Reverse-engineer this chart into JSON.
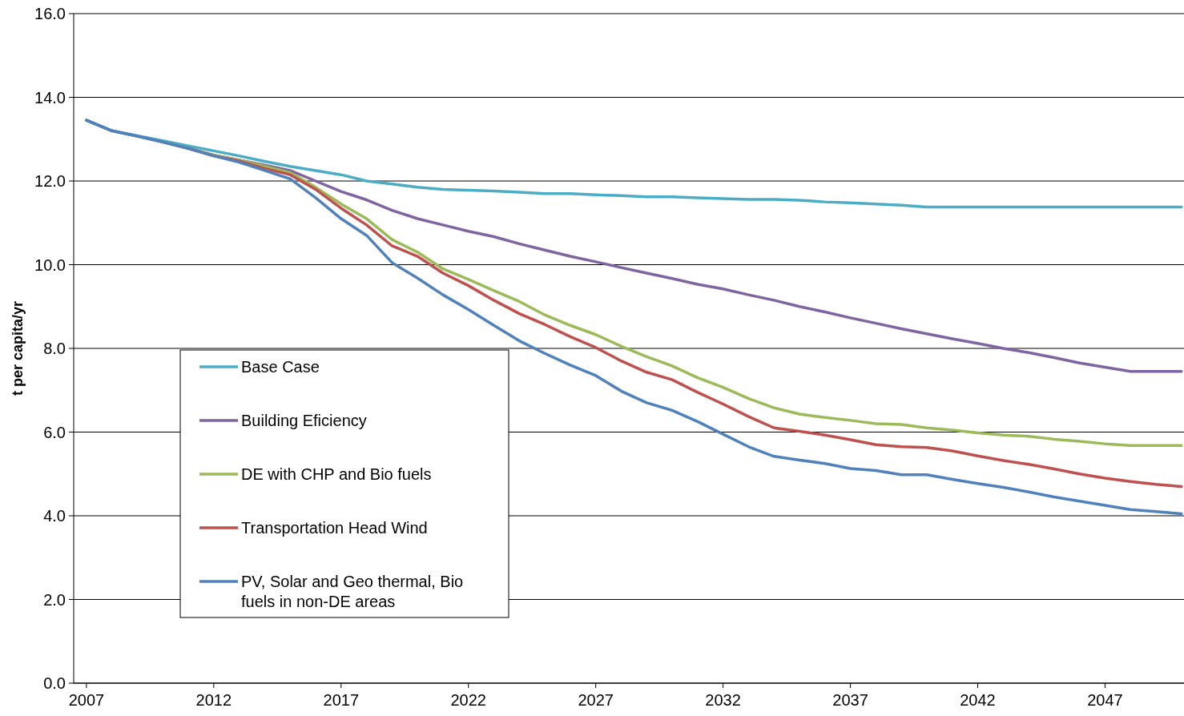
{
  "chart_data": {
    "type": "line",
    "ylabel": "t per capita/yr",
    "xlim": [
      2006.5,
      2050.1
    ],
    "xticks": [
      2007,
      2012,
      2017,
      2022,
      2027,
      2032,
      2037,
      2042,
      2047
    ],
    "ylim": [
      0,
      16
    ],
    "yticks": [
      {
        "value": 0,
        "label": "0.0"
      },
      {
        "value": 2,
        "label": "2.0"
      },
      {
        "value": 4,
        "label": "4.0"
      },
      {
        "value": 6,
        "label": "6.0"
      },
      {
        "value": 8,
        "label": "8.0"
      },
      {
        "value": 10,
        "label": "10.0"
      },
      {
        "value": 12,
        "label": "12.0"
      },
      {
        "value": 14,
        "label": "14.0"
      },
      {
        "value": 16,
        "label": "16.0"
      }
    ],
    "grid": "y",
    "legend": "bottom left",
    "marker": "none",
    "line_style": "solid",
    "x": [
      2007,
      2008,
      2009,
      2010,
      2011,
      2012,
      2013,
      2014,
      2015,
      2016,
      2017,
      2018,
      2019,
      2020,
      2021,
      2022,
      2023,
      2024,
      2025,
      2026,
      2027,
      2028,
      2029,
      2030,
      2031,
      2032,
      2033,
      2034,
      2035,
      2036,
      2037,
      2038,
      2039,
      2040,
      2041,
      2042,
      2043,
      2044,
      2045,
      2046,
      2047,
      2048,
      2049,
      2050
    ],
    "series": [
      {
        "name": "Base Case",
        "color": "#4bacc6",
        "values": [
          13.45,
          13.2,
          13.08,
          12.96,
          12.84,
          12.72,
          12.6,
          12.47,
          12.35,
          12.25,
          12.15,
          12.0,
          11.93,
          11.85,
          11.8,
          11.78,
          11.76,
          11.73,
          11.7,
          11.7,
          11.67,
          11.65,
          11.62,
          11.62,
          11.6,
          11.58,
          11.56,
          11.56,
          11.54,
          11.5,
          11.48,
          11.45,
          11.42,
          11.38,
          11.38,
          11.38,
          11.38,
          11.38,
          11.38,
          11.38,
          11.38,
          11.38,
          11.38,
          11.38
        ]
      },
      {
        "name": "Building Eficiency",
        "color": "#8064a2",
        "values": [
          13.45,
          13.2,
          13.07,
          12.93,
          12.78,
          12.62,
          12.5,
          12.38,
          12.25,
          12.0,
          11.75,
          11.55,
          11.3,
          11.1,
          10.95,
          10.8,
          10.67,
          10.5,
          10.35,
          10.2,
          10.07,
          9.93,
          9.8,
          9.67,
          9.53,
          9.42,
          9.28,
          9.15,
          9.0,
          8.87,
          8.73,
          8.6,
          8.47,
          8.35,
          8.23,
          8.12,
          8.0,
          7.9,
          7.78,
          7.65,
          7.55,
          7.45,
          7.45,
          7.45
        ]
      },
      {
        "name": "DE with CHP and Bio fuels",
        "color": "#9bbb59",
        "values": [
          null,
          null,
          null,
          12.93,
          12.78,
          12.62,
          12.5,
          12.35,
          12.2,
          11.85,
          11.45,
          11.1,
          10.6,
          10.3,
          9.9,
          9.65,
          9.38,
          9.12,
          8.8,
          8.55,
          8.33,
          8.05,
          7.8,
          7.58,
          7.3,
          7.07,
          6.8,
          6.58,
          6.43,
          6.35,
          6.28,
          6.2,
          6.18,
          6.1,
          6.05,
          5.98,
          5.93,
          5.9,
          5.83,
          5.78,
          5.72,
          5.68,
          5.68,
          5.68
        ]
      },
      {
        "name": "Transportation Head Wind",
        "color": "#c0504d",
        "values": [
          null,
          null,
          null,
          null,
          12.78,
          12.6,
          12.48,
          12.3,
          12.15,
          11.8,
          11.35,
          10.95,
          10.45,
          10.2,
          9.8,
          9.5,
          9.15,
          8.83,
          8.57,
          8.28,
          8.02,
          7.7,
          7.43,
          7.25,
          6.95,
          6.67,
          6.37,
          6.1,
          6.02,
          5.93,
          5.82,
          5.7,
          5.65,
          5.63,
          5.55,
          5.43,
          5.32,
          5.23,
          5.12,
          5.0,
          4.9,
          4.82,
          4.75,
          4.7
        ]
      },
      {
        "name": "PV, Solar and Geo thermal, Bio fuels in non-DE areas",
        "color": "#4f81bd",
        "values": [
          13.45,
          13.2,
          13.07,
          12.93,
          12.78,
          12.6,
          12.45,
          12.25,
          12.05,
          11.6,
          11.1,
          10.7,
          10.05,
          9.68,
          9.28,
          8.93,
          8.55,
          8.18,
          7.88,
          7.6,
          7.35,
          6.98,
          6.7,
          6.52,
          6.25,
          5.95,
          5.65,
          5.42,
          5.33,
          5.25,
          5.13,
          5.08,
          4.98,
          4.98,
          4.87,
          4.77,
          4.68,
          4.57,
          4.45,
          4.35,
          4.25,
          4.15,
          4.1,
          4.05
        ]
      }
    ]
  }
}
